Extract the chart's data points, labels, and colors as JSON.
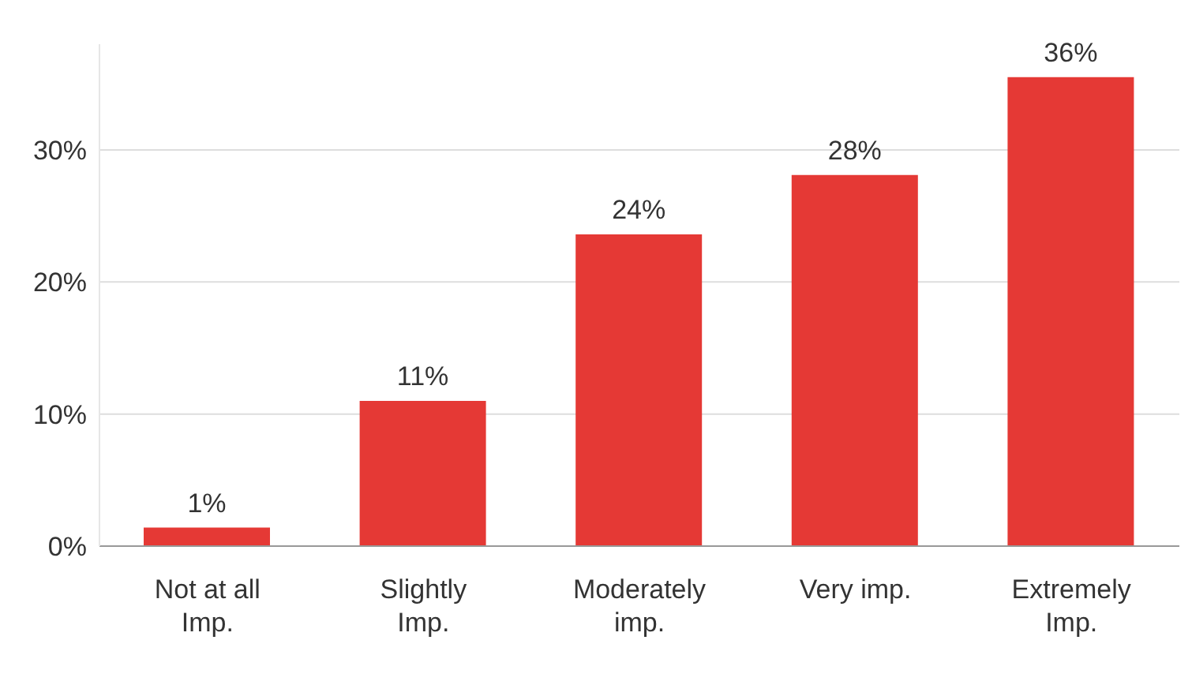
{
  "chart_data": {
    "type": "bar",
    "categories": [
      "Not at all Imp.",
      "Slightly Imp.",
      "Moderately imp.",
      "Very imp.",
      "Extremely Imp."
    ],
    "values": [
      1.4,
      11,
      23.6,
      28.1,
      35.5
    ],
    "value_labels": [
      "1%",
      "11%",
      "24%",
      "28%",
      "36%"
    ],
    "color": "#e53935",
    "ylim": [
      0,
      38
    ],
    "yticks": [
      {
        "value": 0,
        "label": "0%"
      },
      {
        "value": 10,
        "label": "10%"
      },
      {
        "value": 20,
        "label": "20%"
      },
      {
        "value": 30,
        "label": "30%"
      }
    ],
    "grid": "y"
  }
}
